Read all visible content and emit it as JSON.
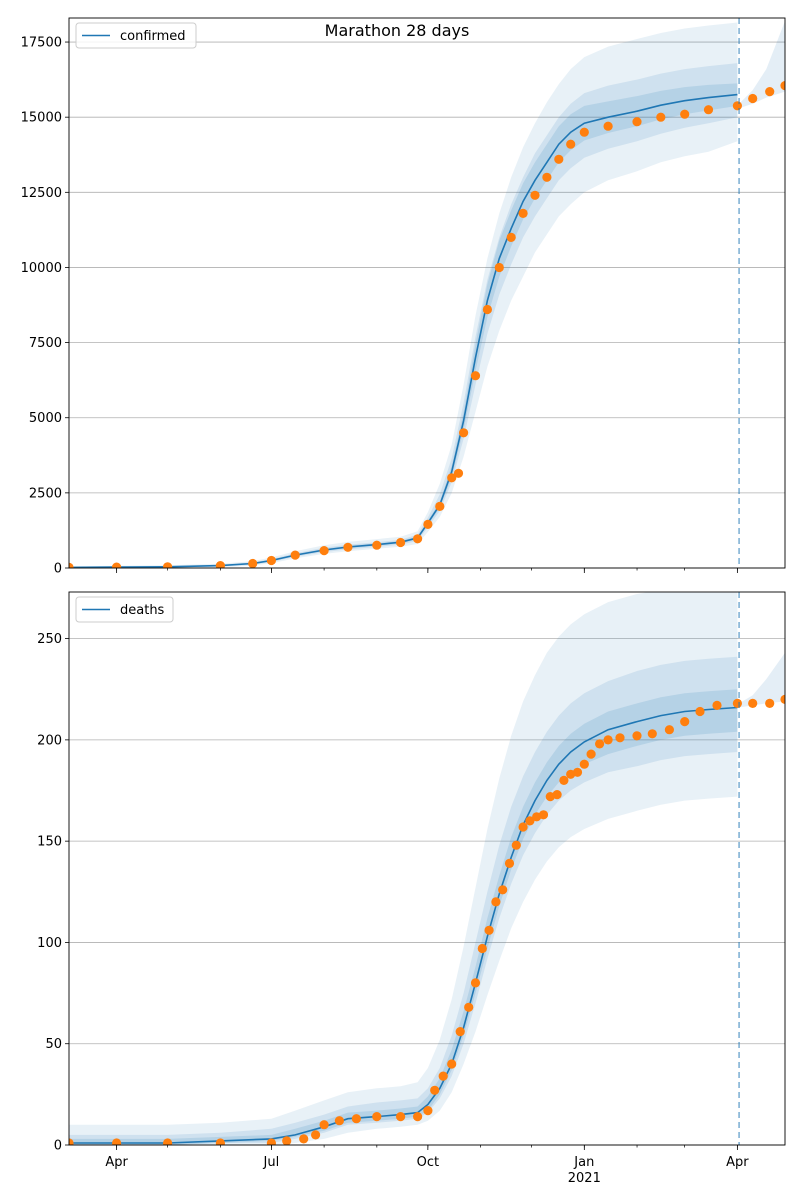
{
  "figure_title": "Marathon 28 days",
  "colors": {
    "model": "#1f77b4",
    "observed": "#ff7f0e",
    "band": "#1f77b4",
    "grid": "#b0b0b0",
    "forecast_marker": "#1f77b4"
  },
  "x_axis": {
    "tick_labels": [
      {
        "date": "2020-04-01",
        "label": "Apr"
      },
      {
        "date": "2020-07-01",
        "label": "Jul"
      },
      {
        "date": "2020-10-01",
        "label": "Oct"
      },
      {
        "date": "2021-01-01",
        "label": "Jan",
        "sublabel": "2021"
      },
      {
        "date": "2021-04-01",
        "label": "Apr"
      }
    ],
    "range": [
      "2020-03-04",
      "2021-04-29"
    ],
    "forecast_date": "2021-04-02",
    "minor_ticks": "monthly"
  },
  "chart_data": [
    {
      "type": "line",
      "legend": [
        "confirmed"
      ],
      "legend_position": "upper-left",
      "grid": "horizontal",
      "ylim": [
        0,
        18300
      ],
      "yticks": [
        0,
        2500,
        5000,
        7500,
        10000,
        12500,
        15000,
        17500
      ],
      "model": {
        "name": "confirmed",
        "x": [
          "2020-03-04",
          "2020-04-01",
          "2020-05-01",
          "2020-06-01",
          "2020-06-20",
          "2020-07-01",
          "2020-07-15",
          "2020-08-01",
          "2020-08-15",
          "2020-09-01",
          "2020-09-15",
          "2020-09-25",
          "2020-10-01",
          "2020-10-08",
          "2020-10-15",
          "2020-10-22",
          "2020-10-29",
          "2020-11-05",
          "2020-11-12",
          "2020-11-19",
          "2020-11-26",
          "2020-12-03",
          "2020-12-10",
          "2020-12-17",
          "2020-12-24",
          "2021-01-01",
          "2021-01-15",
          "2021-02-01",
          "2021-02-15",
          "2021-03-01",
          "2021-03-15",
          "2021-04-01"
        ],
        "y": [
          20,
          30,
          40,
          80,
          150,
          250,
          430,
          600,
          700,
          780,
          860,
          1000,
          1500,
          2100,
          3200,
          4900,
          7000,
          8900,
          10300,
          11300,
          12200,
          12900,
          13500,
          14100,
          14500,
          14800,
          15000,
          15200,
          15400,
          15550,
          15650,
          15750
        ],
        "bands": [
          {
            "level": "outer",
            "lower": [
              0,
              0,
              0,
              30,
              80,
              160,
              320,
              470,
              560,
              640,
              710,
              800,
              1200,
              1700,
              2500,
              3700,
              5200,
              6700,
              7900,
              8900,
              9700,
              10500,
              11100,
              11700,
              12100,
              12500,
              12900,
              13200,
              13500,
              13700,
              13850,
              14200
            ],
            "upper": [
              60,
              70,
              90,
              140,
              230,
              350,
              560,
              760,
              870,
              960,
              1040,
              1220,
              1860,
              2800,
              4100,
              6100,
              8400,
              10300,
              11800,
              13000,
              14000,
              14800,
              15500,
              16100,
              16600,
              17000,
              17350,
              17600,
              17800,
              17950,
              18050,
              18150
            ]
          },
          {
            "level": "middle",
            "lower": [
              5,
              10,
              15,
              50,
              110,
              200,
              370,
              530,
              620,
              700,
              780,
              900,
              1350,
              1900,
              2850,
              4300,
              6100,
              7800,
              9100,
              10100,
              11000,
              11700,
              12300,
              12900,
              13300,
              13650,
              13950,
              14200,
              14450,
              14650,
              14800,
              15000
            ],
            "upper": [
              40,
              50,
              65,
              110,
              190,
              300,
              490,
              680,
              780,
              860,
              940,
              1110,
              1680,
              2450,
              3650,
              5500,
              7700,
              9600,
              11000,
              12100,
              13000,
              13800,
              14400,
              15000,
              15450,
              15800,
              16050,
              16250,
              16450,
              16600,
              16700,
              16800
            ]
          },
          {
            "level": "inner",
            "lower": [
              12,
              20,
              28,
              65,
              130,
              225,
              400,
              565,
              660,
              740,
              820,
              950,
              1420,
              2000,
              3000,
              4600,
              6550,
              8350,
              9700,
              10700,
              11600,
              12300,
              12900,
              13500,
              13900,
              14225,
              14475,
              14700,
              14925,
              15100,
              15225,
              15375
            ],
            "upper": [
              28,
              40,
              52,
              95,
              170,
              275,
              460,
              635,
              740,
              820,
              900,
              1050,
              1580,
              2200,
              3400,
              5200,
              7450,
              9450,
              10900,
              11900,
              12800,
              13500,
              14100,
              14700,
              15100,
              15375,
              15525,
              15700,
              15875,
              16000,
              16075,
              16125
            ]
          }
        ]
      },
      "forecast": {
        "x": [
          "2021-04-02",
          "2021-04-10",
          "2021-04-18",
          "2021-04-29"
        ],
        "lower": [
          15300,
          15450,
          15650,
          15850
        ],
        "upper": [
          15450,
          15900,
          16600,
          18200
        ]
      },
      "observed": {
        "x": [
          "2020-03-04",
          "2020-04-01",
          "2020-05-01",
          "2020-06-01",
          "2020-06-20",
          "2020-07-01",
          "2020-07-15",
          "2020-08-01",
          "2020-08-15",
          "2020-09-01",
          "2020-09-15",
          "2020-09-25",
          "2020-10-01",
          "2020-10-08",
          "2020-10-15",
          "2020-10-19",
          "2020-10-22",
          "2020-10-29",
          "2020-11-05",
          "2020-11-12",
          "2020-11-19",
          "2020-11-26",
          "2020-12-03",
          "2020-12-10",
          "2020-12-17",
          "2020-12-24",
          "2021-01-01",
          "2021-01-15",
          "2021-02-01",
          "2021-02-15",
          "2021-03-01",
          "2021-03-15",
          "2021-04-01",
          "2021-04-10",
          "2021-04-20",
          "2021-04-29"
        ],
        "y": [
          20,
          30,
          40,
          80,
          150,
          250,
          430,
          580,
          690,
          760,
          850,
          970,
          1450,
          2050,
          3000,
          3150,
          4500,
          6400,
          8600,
          10000,
          11000,
          11800,
          12400,
          13000,
          13600,
          14100,
          14500,
          14700,
          14850,
          15000,
          15100,
          15250,
          15380,
          15620,
          15850,
          16050
        ]
      }
    },
    {
      "type": "line",
      "legend": [
        "deaths"
      ],
      "legend_position": "upper-left",
      "grid": "horizontal",
      "ylim": [
        0,
        273
      ],
      "yticks": [
        0,
        50,
        100,
        150,
        200,
        250
      ],
      "model": {
        "name": "deaths",
        "x": [
          "2020-03-04",
          "2020-04-01",
          "2020-05-01",
          "2020-06-01",
          "2020-07-01",
          "2020-07-15",
          "2020-08-01",
          "2020-08-15",
          "2020-09-01",
          "2020-09-15",
          "2020-09-25",
          "2020-10-01",
          "2020-10-08",
          "2020-10-15",
          "2020-10-22",
          "2020-10-29",
          "2020-11-05",
          "2020-11-12",
          "2020-11-19",
          "2020-11-26",
          "2020-12-03",
          "2020-12-10",
          "2020-12-17",
          "2020-12-24",
          "2021-01-01",
          "2021-01-15",
          "2021-02-01",
          "2021-02-15",
          "2021-03-01",
          "2021-03-15",
          "2021-04-01"
        ],
        "y": [
          1,
          1,
          1,
          2,
          3,
          5,
          9,
          13,
          14,
          15,
          16,
          20,
          28,
          40,
          58,
          80,
          103,
          124,
          142,
          158,
          170,
          180,
          188,
          194,
          199,
          205,
          209,
          212,
          214,
          215,
          216
        ],
        "bands": [
          {
            "level": "outer",
            "lower": [
              0,
              0,
              0,
              0,
              0,
              1,
              3,
              6,
              8,
              9,
              10,
              12,
              17,
              26,
              40,
              56,
              74,
              91,
              107,
              120,
              131,
              140,
              147,
              152,
              156,
              161,
              165,
              168,
              170,
              171,
              172
            ],
            "upper": [
              10,
              10,
              10,
              11,
              13,
              17,
              22,
              26,
              28,
              29,
              31,
              38,
              52,
              72,
              98,
              127,
              156,
              181,
              202,
              219,
              232,
              243,
              251,
              257,
              262,
              268,
              272,
              274,
              275,
              276,
              276
            ]
          },
          {
            "level": "middle",
            "lower": [
              0,
              0,
              0,
              1,
              1,
              3,
              6,
              10,
              11,
              12,
              13,
              16,
              23,
              34,
              50,
              70,
              92,
              112,
              129,
              143,
              154,
              163,
              170,
              175,
              179,
              184,
              187,
              190,
              192,
              193,
              194
            ],
            "upper": [
              5,
              5,
              5,
              6,
              8,
              11,
              15,
              19,
              21,
              22,
              23,
              28,
              38,
              54,
              75,
              100,
              125,
              148,
              167,
              182,
              194,
              204,
              212,
              218,
              223,
              229,
              234,
              237,
              239,
              240,
              241
            ]
          },
          {
            "level": "inner",
            "lower": [
              0,
              0,
              0,
              1,
              2,
              4,
              7,
              11,
              12,
              13,
              14,
              17,
              25,
              37,
              54,
              75,
              97,
              118,
              136,
              151,
              163,
              172,
              179,
              184,
              188,
              193,
              197,
              200,
              202,
              203,
              204
            ],
            "upper": [
              3,
              3,
              3,
              4,
              5,
              8,
              12,
              16,
              17,
              18,
              19,
              24,
              33,
              47,
              66,
              88,
              112,
              133,
              152,
              167,
              179,
              189,
              197,
              203,
              208,
              214,
              218,
              221,
              223,
              224,
              225
            ]
          }
        ]
      },
      "forecast": {
        "x": [
          "2021-04-02",
          "2021-04-10",
          "2021-04-18",
          "2021-04-29"
        ],
        "lower": [
          216,
          217,
          218,
          219
        ],
        "upper": [
          218,
          222,
          230,
          243
        ]
      },
      "observed": {
        "x": [
          "2020-03-04",
          "2020-04-01",
          "2020-05-01",
          "2020-06-01",
          "2020-07-01",
          "2020-07-10",
          "2020-07-20",
          "2020-07-27",
          "2020-08-01",
          "2020-08-10",
          "2020-08-20",
          "2020-09-01",
          "2020-09-15",
          "2020-09-25",
          "2020-10-01",
          "2020-10-05",
          "2020-10-10",
          "2020-10-15",
          "2020-10-20",
          "2020-10-25",
          "2020-10-29",
          "2020-11-02",
          "2020-11-06",
          "2020-11-10",
          "2020-11-14",
          "2020-11-18",
          "2020-11-22",
          "2020-11-26",
          "2020-11-30",
          "2020-12-04",
          "2020-12-08",
          "2020-12-12",
          "2020-12-16",
          "2020-12-20",
          "2020-12-24",
          "2020-12-28",
          "2021-01-01",
          "2021-01-05",
          "2021-01-10",
          "2021-01-15",
          "2021-01-22",
          "2021-02-01",
          "2021-02-10",
          "2021-02-20",
          "2021-03-01",
          "2021-03-10",
          "2021-03-20",
          "2021-04-01",
          "2021-04-10",
          "2021-04-20",
          "2021-04-29"
        ],
        "y": [
          1,
          1,
          1,
          1,
          1,
          2,
          3,
          5,
          10,
          12,
          13,
          14,
          14,
          14,
          17,
          27,
          34,
          40,
          56,
          68,
          80,
          97,
          106,
          120,
          126,
          139,
          148,
          157,
          160,
          162,
          163,
          172,
          173,
          180,
          183,
          184,
          188,
          193,
          198,
          200,
          201,
          202,
          203,
          205,
          209,
          214,
          217,
          218,
          218,
          218,
          220
        ]
      }
    }
  ]
}
